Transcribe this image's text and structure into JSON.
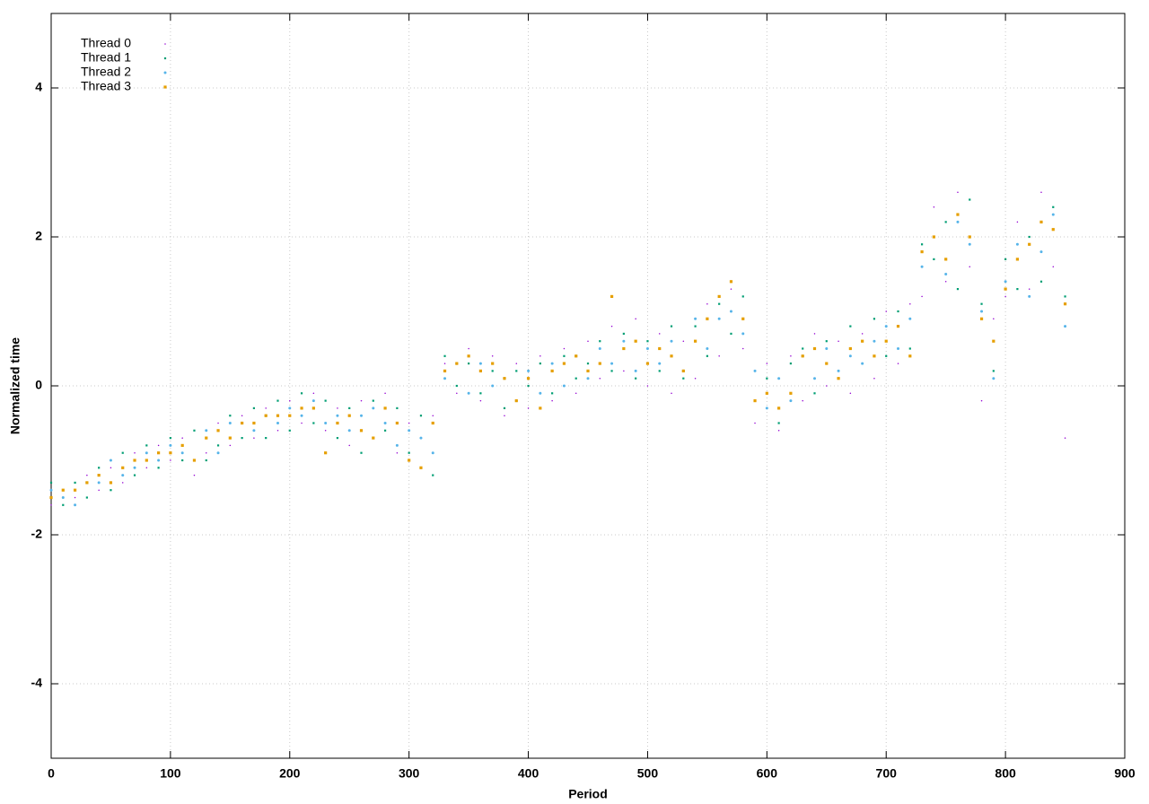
{
  "chart_data": {
    "type": "scatter",
    "xlabel": "Period",
    "ylabel": "Normalized time",
    "xlim": [
      0,
      900
    ],
    "xticks": [
      0,
      100,
      200,
      300,
      400,
      500,
      600,
      700,
      800,
      900
    ],
    "ylim": [
      -5,
      5
    ],
    "yticks": [
      -4,
      -2,
      0,
      2,
      4
    ],
    "grid": true,
    "legend": "top-left",
    "x": [
      0,
      10,
      20,
      30,
      40,
      50,
      60,
      70,
      80,
      90,
      100,
      110,
      120,
      130,
      140,
      150,
      160,
      170,
      180,
      190,
      200,
      210,
      220,
      230,
      240,
      250,
      260,
      270,
      280,
      290,
      300,
      310,
      320,
      330,
      340,
      350,
      360,
      370,
      380,
      390,
      400,
      410,
      420,
      430,
      440,
      450,
      460,
      470,
      480,
      490,
      500,
      510,
      520,
      530,
      540,
      550,
      560,
      570,
      580,
      590,
      600,
      610,
      620,
      630,
      640,
      650,
      660,
      670,
      680,
      690,
      700,
      710,
      720,
      730,
      740,
      750,
      760,
      770,
      780,
      790,
      800,
      810,
      820,
      830,
      840,
      850
    ],
    "series": [
      {
        "name": "Thread 0",
        "color": "#9400d3",
        "values": [
          -1.6,
          -1.4,
          -1.5,
          -1.2,
          -1.4,
          -1.1,
          -1.3,
          -0.9,
          -1.1,
          -0.8,
          -1.0,
          -0.7,
          -1.2,
          -0.9,
          -0.5,
          -0.8,
          -0.4,
          -0.7,
          -0.3,
          -0.6,
          -0.2,
          -0.5,
          -0.1,
          -0.6,
          -0.3,
          -0.8,
          -0.2,
          -0.7,
          -0.1,
          -0.9,
          -0.5,
          -1.1,
          -0.4,
          0.3,
          -0.1,
          0.5,
          -0.2,
          0.4,
          -0.4,
          0.3,
          -0.3,
          0.4,
          -0.2,
          0.5,
          -0.1,
          0.6,
          0.1,
          0.8,
          0.2,
          0.9,
          0,
          0.7,
          -0.1,
          0.6,
          0.1,
          1.1,
          0.4,
          1.3,
          0.5,
          -0.5,
          0.3,
          -0.6,
          0.4,
          -0.2,
          0.7,
          0,
          0.6,
          -0.1,
          0.7,
          0.1,
          1.0,
          0.3,
          1.1,
          1.2,
          2.4,
          1.4,
          2.6,
          1.6,
          -0.2,
          0.9,
          1.2,
          2.2,
          1.3,
          2.6,
          1.6,
          -0.7
        ]
      },
      {
        "name": "Thread 1",
        "color": "#009e73",
        "values": [
          -1.3,
          -1.6,
          -1.3,
          -1.5,
          -1.1,
          -1.4,
          -0.9,
          -1.2,
          -0.8,
          -1.1,
          -0.7,
          -1.0,
          -0.6,
          -1.0,
          -0.8,
          -0.4,
          -0.7,
          -0.3,
          -0.7,
          -0.2,
          -0.6,
          -0.1,
          -0.5,
          -0.2,
          -0.7,
          -0.3,
          -0.9,
          -0.2,
          -0.6,
          -0.3,
          -0.9,
          -0.4,
          -1.2,
          0.4,
          0,
          0.3,
          -0.1,
          0.2,
          -0.3,
          0.2,
          0,
          0.3,
          -0.1,
          0.4,
          0.1,
          0.3,
          0.6,
          0.2,
          0.7,
          0.1,
          0.6,
          0.2,
          0.8,
          0.1,
          0.8,
          0.4,
          1.1,
          0.7,
          1.2,
          -0.2,
          0.1,
          -0.5,
          0.3,
          0.5,
          -0.1,
          0.6,
          0.2,
          0.8,
          0.3,
          0.9,
          0.4,
          1.0,
          0.5,
          1.9,
          1.7,
          2.2,
          1.3,
          2.5,
          1.1,
          0.2,
          1.7,
          1.3,
          2.0,
          1.4,
          2.4,
          1.2
        ]
      },
      {
        "name": "Thread 2",
        "color": "#56b4e9",
        "values": [
          -1.4,
          -1.5,
          -1.6,
          -1.3,
          -1.3,
          -1.0,
          -1.2,
          -1.1,
          -0.9,
          -1.0,
          -0.8,
          -0.9,
          -1.0,
          -0.6,
          -0.9,
          -0.5,
          -0.5,
          -0.6,
          -0.4,
          -0.5,
          -0.3,
          -0.4,
          -0.2,
          -0.5,
          -0.4,
          -0.6,
          -0.4,
          -0.3,
          -0.5,
          -0.8,
          -0.6,
          -0.7,
          -0.9,
          0.1,
          0.3,
          -0.1,
          0.3,
          0,
          0.1,
          -0.2,
          0.2,
          -0.1,
          0.3,
          0,
          0.4,
          0.1,
          0.5,
          0.3,
          0.6,
          0.2,
          0.5,
          0.3,
          0.6,
          0.2,
          0.9,
          0.5,
          0.9,
          1.0,
          0.7,
          0.2,
          -0.3,
          0.1,
          -0.2,
          0.4,
          0.1,
          0.5,
          0.2,
          0.4,
          0.3,
          0.6,
          0.8,
          0.5,
          0.9,
          1.6,
          2.0,
          1.5,
          2.2,
          1.9,
          1.0,
          0.1,
          1.4,
          1.9,
          1.2,
          1.8,
          2.3,
          0.8
        ]
      },
      {
        "name": "Thread 3",
        "color": "#e69f00",
        "values": [
          -1.5,
          -1.4,
          -1.4,
          -1.3,
          -1.2,
          -1.3,
          -1.1,
          -1.0,
          -1.0,
          -0.9,
          -0.9,
          -0.8,
          -1.0,
          -0.7,
          -0.6,
          -0.7,
          -0.5,
          -0.5,
          -0.4,
          -0.4,
          -0.4,
          -0.3,
          -0.3,
          -0.9,
          -0.5,
          -0.4,
          -0.6,
          -0.7,
          -0.3,
          -0.5,
          -1.0,
          -1.1,
          -0.5,
          0.2,
          0.3,
          0.4,
          0.2,
          0.3,
          0.1,
          -0.2,
          0.1,
          -0.3,
          0.2,
          0.3,
          0.4,
          0.2,
          0.3,
          1.2,
          0.5,
          0.6,
          0.3,
          0.5,
          0.4,
          0.2,
          0.6,
          0.9,
          1.2,
          1.4,
          0.9,
          -0.2,
          -0.1,
          -0.3,
          -0.1,
          0.4,
          0.5,
          0.3,
          0.1,
          0.5,
          0.6,
          0.4,
          0.6,
          0.8,
          0.4,
          1.8,
          2.0,
          1.7,
          2.3,
          2.0,
          0.9,
          0.6,
          1.3,
          1.7,
          1.9,
          2.2,
          2.1,
          1.1
        ]
      }
    ]
  }
}
